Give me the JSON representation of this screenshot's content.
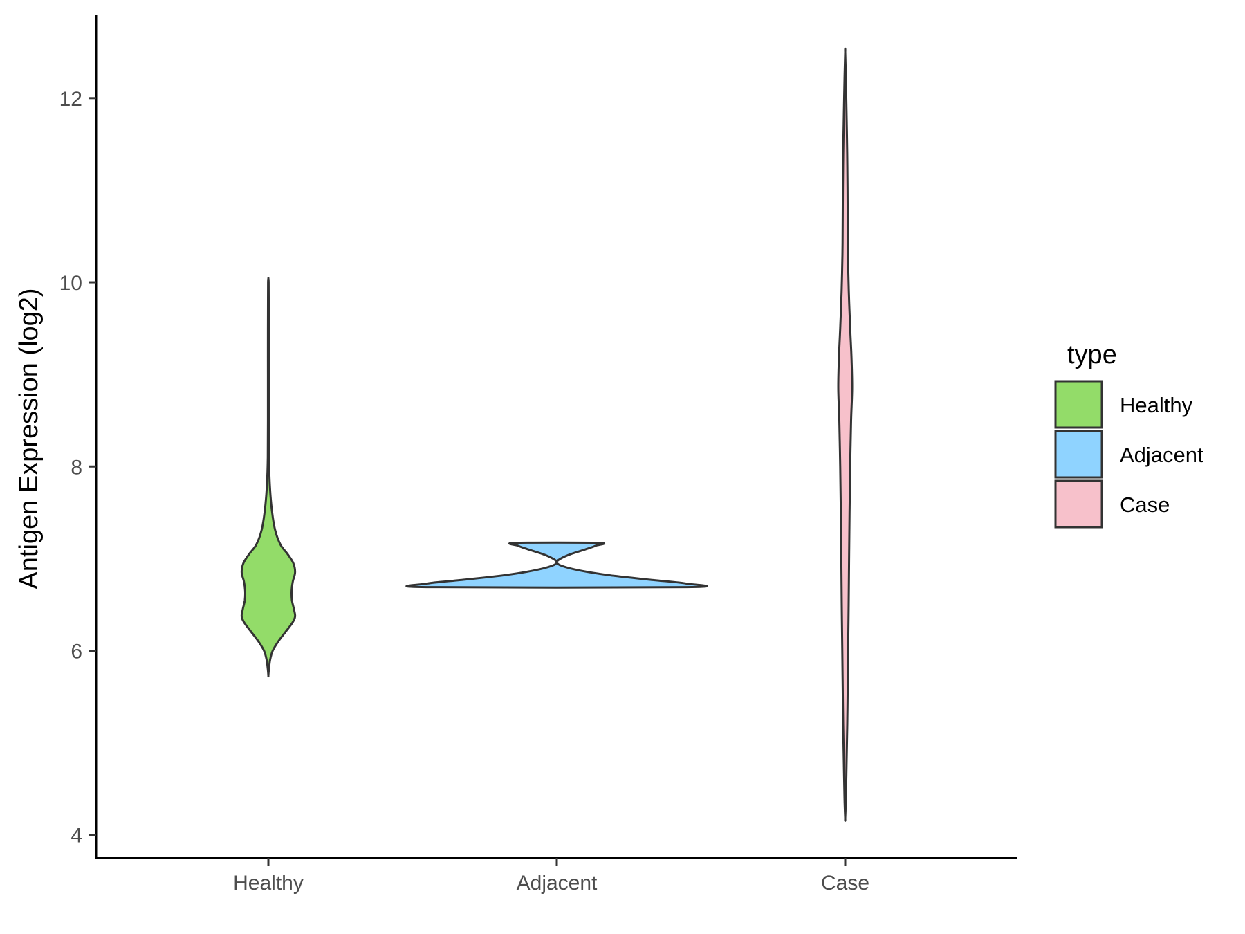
{
  "chart_data": {
    "type": "violin",
    "title": "",
    "xlabel": "",
    "ylabel": "Antigen Expression (log2)",
    "ylim": [
      3.75,
      12.9
    ],
    "yticks": [
      4,
      6,
      8,
      10,
      12
    ],
    "categories": [
      "Healthy",
      "Adjacent",
      "Case"
    ],
    "grid": false,
    "legend": {
      "title": "type",
      "placement": "right",
      "entries": [
        "Healthy",
        "Adjacent",
        "Case"
      ]
    },
    "series": [
      {
        "category": "Healthy",
        "color": "#93dc69",
        "density": [
          [
            5.73,
            0.0
          ],
          [
            5.8,
            0.02
          ],
          [
            5.9,
            0.06
          ],
          [
            6.0,
            0.15
          ],
          [
            6.1,
            0.34
          ],
          [
            6.2,
            0.58
          ],
          [
            6.3,
            0.82
          ],
          [
            6.37,
            0.92
          ],
          [
            6.45,
            0.88
          ],
          [
            6.55,
            0.81
          ],
          [
            6.65,
            0.8
          ],
          [
            6.75,
            0.84
          ],
          [
            6.85,
            0.92
          ],
          [
            6.95,
            0.86
          ],
          [
            7.05,
            0.66
          ],
          [
            7.15,
            0.42
          ],
          [
            7.3,
            0.24
          ],
          [
            7.5,
            0.13
          ],
          [
            7.7,
            0.07
          ],
          [
            7.9,
            0.035
          ],
          [
            8.1,
            0.02
          ],
          [
            8.5,
            0.015
          ],
          [
            9.0,
            0.015
          ],
          [
            9.5,
            0.015
          ],
          [
            9.8,
            0.012
          ],
          [
            10.0,
            0.01
          ],
          [
            10.04,
            0.0
          ]
        ]
      },
      {
        "category": "Adjacent",
        "color": "#8fd3ff",
        "density": [
          [
            6.69,
            1.0
          ],
          [
            6.73,
            0.99
          ],
          [
            6.77,
            0.72
          ],
          [
            6.82,
            0.4
          ],
          [
            6.87,
            0.18
          ],
          [
            6.92,
            0.04
          ],
          [
            6.96,
            0.0
          ],
          [
            7.0,
            0.03
          ],
          [
            7.05,
            0.11
          ],
          [
            7.1,
            0.22
          ],
          [
            7.14,
            0.3
          ],
          [
            7.17,
            0.32
          ]
        ]
      },
      {
        "category": "Case",
        "color": "#f7c1cb",
        "density": [
          [
            4.18,
            0.0
          ],
          [
            4.4,
            0.1
          ],
          [
            4.8,
            0.2
          ],
          [
            5.2,
            0.3
          ],
          [
            5.6,
            0.36
          ],
          [
            6.0,
            0.42
          ],
          [
            6.5,
            0.5
          ],
          [
            7.0,
            0.56
          ],
          [
            7.5,
            0.63
          ],
          [
            8.0,
            0.72
          ],
          [
            8.5,
            0.85
          ],
          [
            8.85,
            1.0
          ],
          [
            9.2,
            0.9
          ],
          [
            9.5,
            0.72
          ],
          [
            9.9,
            0.52
          ],
          [
            10.3,
            0.4
          ],
          [
            10.7,
            0.36
          ],
          [
            11.0,
            0.34
          ],
          [
            11.4,
            0.29
          ],
          [
            11.8,
            0.2
          ],
          [
            12.2,
            0.1
          ],
          [
            12.5,
            0.0
          ]
        ]
      }
    ]
  }
}
